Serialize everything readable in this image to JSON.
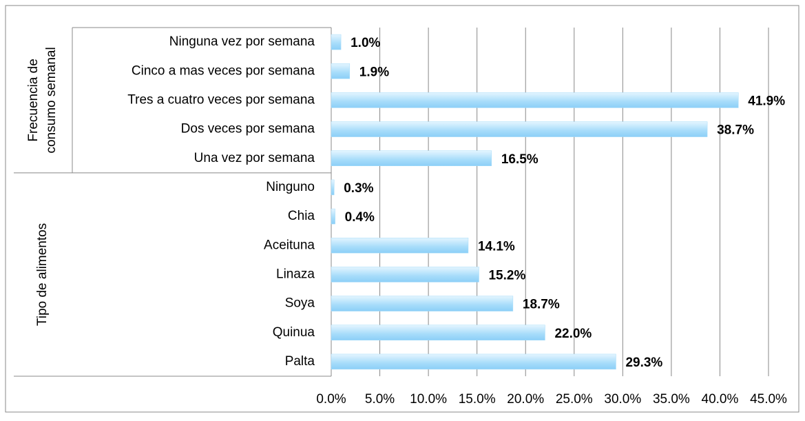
{
  "chart_data": {
    "type": "bar",
    "orientation": "horizontal",
    "color": "#a6dcfa",
    "groups": [
      {
        "name_lines": [
          "Frecuencia de",
          "consumo semanal"
        ],
        "categories": [
          "Ninguna vez por semana",
          "Cinco a mas veces por semana",
          "Tres a cuatro veces por semana",
          "Dos veces por semana",
          "Una vez por semana"
        ],
        "values": [
          1.0,
          1.9,
          41.9,
          38.7,
          16.5
        ],
        "value_labels": [
          "1.0%",
          "1.9%",
          "41.9%",
          "38.7%",
          "16.5%"
        ]
      },
      {
        "name_lines": [
          "Tipo de alimentos"
        ],
        "categories": [
          "Ninguno",
          "Chia",
          "Aceituna",
          "Linaza",
          "Soya",
          "Quinua",
          "Palta"
        ],
        "values": [
          0.3,
          0.4,
          14.1,
          15.2,
          18.7,
          22.0,
          29.3
        ],
        "value_labels": [
          "0.3%",
          "0.4%",
          "14.1%",
          "15.2%",
          "18.7%",
          "22.0%",
          "29.3%"
        ]
      }
    ],
    "xlim": [
      0,
      45
    ],
    "xticks": [
      {
        "value": 0,
        "label": "0.0%"
      },
      {
        "value": 5,
        "label": "5.0%"
      },
      {
        "value": 10,
        "label": "10.0%"
      },
      {
        "value": 15,
        "label": "15.0%"
      },
      {
        "value": 20,
        "label": "20.0%"
      },
      {
        "value": 25,
        "label": "25.0%"
      },
      {
        "value": 30,
        "label": "30.0%"
      },
      {
        "value": 35,
        "label": "35.0%"
      },
      {
        "value": 40,
        "label": "40.0%"
      },
      {
        "value": 45,
        "label": "45.0%"
      }
    ],
    "grid": true
  }
}
